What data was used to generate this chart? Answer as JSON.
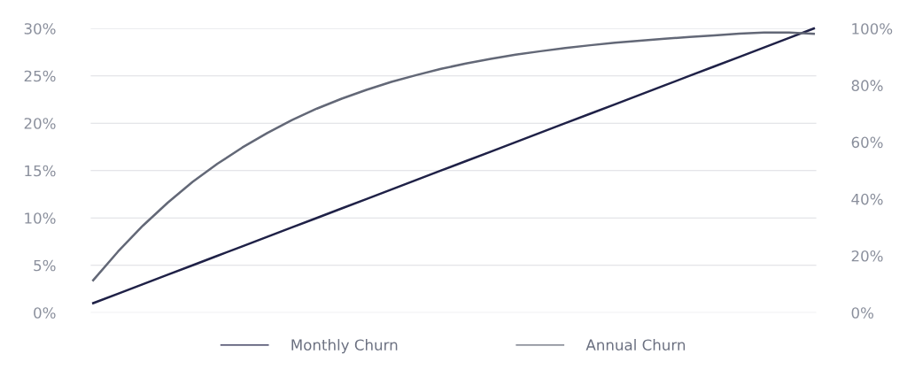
{
  "chart_data": {
    "type": "line",
    "categories": [
      null,
      null,
      null,
      null,
      null,
      null,
      null,
      null,
      null,
      null,
      null,
      null,
      null,
      null,
      null,
      null,
      null,
      null,
      null,
      null,
      null,
      null,
      null,
      null,
      null,
      null,
      null,
      null,
      null,
      null
    ],
    "series": [
      {
        "name": "Monthly Churn",
        "color": "#1f2147",
        "values": [
          1,
          2,
          3,
          4,
          5,
          6,
          7,
          8,
          9,
          10,
          11,
          12,
          13,
          14,
          15,
          16,
          17,
          18,
          19,
          20,
          21,
          22,
          23,
          24,
          25,
          26,
          27,
          28,
          29,
          30
        ]
      },
      {
        "name": "Annual Churn",
        "color": "#636877",
        "axis": "y2",
        "values": [
          11.4,
          21.5,
          30.6,
          38.7,
          46,
          52.4,
          58.1,
          63.2,
          67.8,
          71.8,
          75.3,
          78.4,
          81.2,
          83.6,
          85.8,
          87.7,
          89.3,
          90.8,
          92,
          93.1,
          94.1,
          95,
          95.7,
          96.4,
          97,
          97.6,
          98.2,
          98.6,
          98.6,
          98.1
        ]
      }
    ],
    "ylim": [
      0,
      30
    ],
    "yticks": [
      {
        "value": 0,
        "label": "0%"
      },
      {
        "value": 5,
        "label": "5%"
      },
      {
        "value": 10,
        "label": "10%"
      },
      {
        "value": 15,
        "label": "15%"
      },
      {
        "value": 20,
        "label": "20%"
      },
      {
        "value": 25,
        "label": "25%"
      },
      {
        "value": 30,
        "label": "30%"
      }
    ],
    "y2lim": [
      0,
      100
    ],
    "y2ticks": [
      {
        "value": 0,
        "label": "0%"
      },
      {
        "value": 20,
        "label": "20%"
      },
      {
        "value": 40,
        "label": "40%"
      },
      {
        "value": 60,
        "label": "60%"
      },
      {
        "value": 80,
        "label": "80%"
      },
      {
        "value": 100,
        "label": "100%"
      }
    ],
    "grid": "y",
    "legend": "bottom",
    "marker": "none",
    "line_style": "solid"
  }
}
